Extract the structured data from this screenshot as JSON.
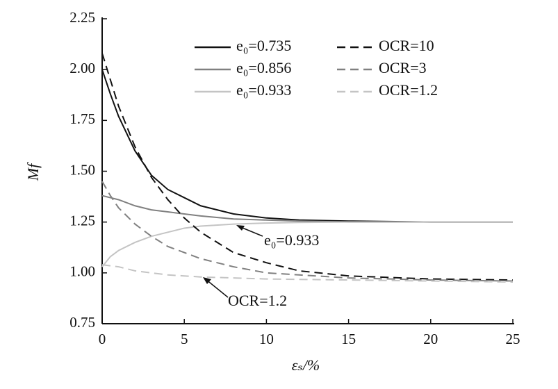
{
  "chart_data": {
    "type": "line",
    "xlabel": "εₛ/%",
    "ylabel": "Mf",
    "x": [
      0,
      0.5,
      1,
      2,
      3,
      4,
      5,
      6,
      8,
      10,
      12,
      15,
      20,
      25
    ],
    "series": [
      {
        "name": "e₀=0.735",
        "color": "#111111",
        "dash": false,
        "values": [
          2.0,
          1.88,
          1.77,
          1.6,
          1.48,
          1.41,
          1.37,
          1.33,
          1.29,
          1.27,
          1.26,
          1.255,
          1.25,
          1.25
        ]
      },
      {
        "name": "e₀=0.856",
        "color": "#808080",
        "dash": false,
        "values": [
          1.38,
          1.37,
          1.36,
          1.33,
          1.31,
          1.3,
          1.29,
          1.28,
          1.265,
          1.26,
          1.255,
          1.25,
          1.25,
          1.25
        ]
      },
      {
        "name": "e₀=0.933",
        "color": "#c4c4c4",
        "dash": false,
        "values": [
          1.03,
          1.08,
          1.11,
          1.15,
          1.18,
          1.2,
          1.22,
          1.23,
          1.24,
          1.245,
          1.248,
          1.25,
          1.25,
          1.25
        ]
      },
      {
        "name": "OCR=10",
        "color": "#111111",
        "dash": true,
        "values": [
          2.08,
          1.95,
          1.82,
          1.62,
          1.47,
          1.36,
          1.27,
          1.2,
          1.1,
          1.05,
          1.01,
          0.985,
          0.97,
          0.965
        ]
      },
      {
        "name": "OCR=3",
        "color": "#808080",
        "dash": true,
        "values": [
          1.45,
          1.38,
          1.32,
          1.24,
          1.18,
          1.13,
          1.1,
          1.07,
          1.03,
          1.0,
          0.99,
          0.975,
          0.965,
          0.96
        ]
      },
      {
        "name": "OCR=1.2",
        "color": "#c4c4c4",
        "dash": true,
        "values": [
          1.04,
          1.035,
          1.03,
          1.01,
          1.0,
          0.99,
          0.985,
          0.98,
          0.975,
          0.97,
          0.968,
          0.965,
          0.96,
          0.955
        ]
      }
    ],
    "xlim": [
      0,
      25
    ],
    "xticks": [
      0,
      5,
      10,
      15,
      20,
      25
    ],
    "ylim": [
      0.75,
      2.25
    ],
    "yticks": [
      0.75,
      {
        "value": 1.0,
        "label": "1.00"
      },
      1.25,
      {
        "value": 1.5,
        "label": "1.50"
      },
      1.75,
      {
        "value": 2.0,
        "label": "2.00"
      },
      2.25
    ],
    "grid": false,
    "legend": "upper right",
    "annotations": [
      {
        "text": "e₀=0.933"
      },
      {
        "text": "OCR=1.2"
      }
    ]
  }
}
